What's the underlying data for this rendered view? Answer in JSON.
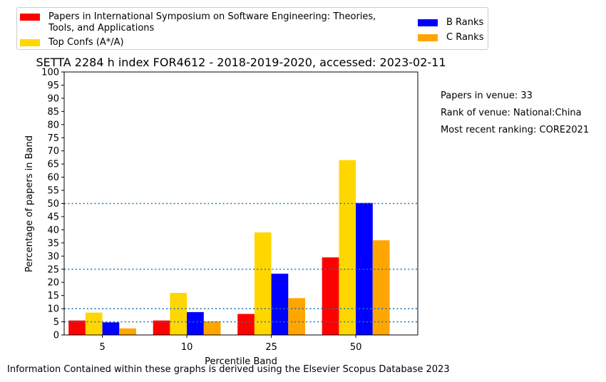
{
  "chart_data": {
    "type": "bar",
    "title": "SETTA 2284 h index FOR4612 - 2018-2019-2020, accessed: 2023-02-11",
    "xlabel": "Percentile Band",
    "ylabel": "Percentage of papers in Band",
    "categories": [
      "5",
      "10",
      "25",
      "50"
    ],
    "ylim": [
      0,
      100
    ],
    "yticks": [
      "0",
      "5",
      "10",
      "15",
      "20",
      "25",
      "30",
      "35",
      "40",
      "45",
      "50",
      "55",
      "60",
      "65",
      "70",
      "75",
      "80",
      "85",
      "90",
      "95",
      "100"
    ],
    "series": [
      {
        "name": "Papers in International Symposium on Software Engineering: Theories, Tools, and Applications",
        "color": "#ff0000",
        "values": [
          5.5,
          5.5,
          8,
          29.5
        ]
      },
      {
        "name": "Top Confs (A*/A)",
        "color": "#ffd700",
        "values": [
          8.5,
          16,
          39,
          66.5
        ]
      },
      {
        "name": "B Ranks",
        "color": "#0000ff",
        "values": [
          4.8,
          8.7,
          23.3,
          50.2
        ]
      },
      {
        "name": "C Ranks",
        "color": "#ffa500",
        "values": [
          2.5,
          5.2,
          14,
          36
        ]
      }
    ],
    "reference_lines": [
      5,
      10,
      25,
      50
    ],
    "reference_line_color": "#1f77b4",
    "grid": false,
    "legend_position": "top"
  },
  "notes": {
    "papers": "Papers in venue: 33",
    "rank": "Rank of venue: National:China",
    "recent": "Most recent ranking: CORE2021"
  },
  "legend": {
    "red_line1": "Papers in International Symposium on Software Engineering: Theories,",
    "red_line2": "Tools, and Applications",
    "top": "Top Confs (A*/A)",
    "b": "B Ranks",
    "c": "C Ranks"
  },
  "footer": "Information Contained within these graphs is derived using the Elsevier Scopus Database 2023"
}
